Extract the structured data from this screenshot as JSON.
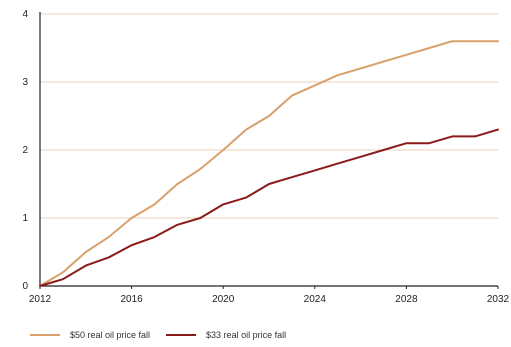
{
  "chart_data": {
    "type": "line",
    "title": "",
    "xlabel": "",
    "ylabel": "",
    "xlim": [
      2012,
      2032
    ],
    "ylim": [
      0,
      4
    ],
    "x_ticks": [
      "2012",
      "2016",
      "2020",
      "2024",
      "2028",
      "2032"
    ],
    "y_ticks": [
      "0",
      "1",
      "2",
      "3",
      "4"
    ],
    "grid": true,
    "legend_position": "bottom-left",
    "x": [
      2012,
      2013,
      2014,
      2015,
      2016,
      2017,
      2018,
      2019,
      2020,
      2021,
      2022,
      2023,
      2024,
      2025,
      2026,
      2027,
      2028,
      2029,
      2030,
      2031,
      2032
    ],
    "series": [
      {
        "name": "$50 real oil price fall",
        "color": "#d9a06b",
        "values": [
          0,
          0.2,
          0.5,
          0.72,
          1.0,
          1.2,
          1.5,
          1.72,
          2.0,
          2.3,
          2.5,
          2.8,
          2.95,
          3.1,
          3.2,
          3.3,
          3.4,
          3.5,
          3.6,
          3.6,
          3.6
        ]
      },
      {
        "name": "$33 real oil price fall",
        "color": "#8b1a1a",
        "values": [
          0,
          0.1,
          0.3,
          0.42,
          0.6,
          0.72,
          0.9,
          1.0,
          1.2,
          1.3,
          1.5,
          1.6,
          1.7,
          1.8,
          1.9,
          2.0,
          2.1,
          2.1,
          2.2,
          2.2,
          2.3
        ]
      }
    ]
  },
  "styles": {
    "grid_color": "#e8d2b4",
    "axis_color": "#222222"
  }
}
